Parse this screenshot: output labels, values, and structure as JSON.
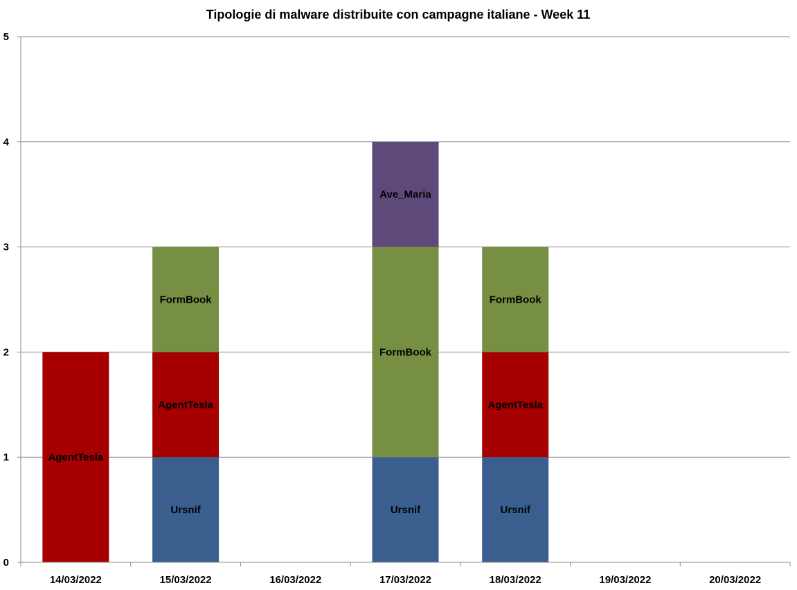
{
  "chart_data": {
    "type": "bar",
    "stacked": true,
    "title": "Tipologie di malware distribuite con campagne italiane - Week 11",
    "xlabel": "",
    "ylabel": "",
    "categories": [
      "14/03/2022",
      "15/03/2022",
      "16/03/2022",
      "17/03/2022",
      "18/03/2022",
      "19/03/2022",
      "20/03/2022"
    ],
    "yticks": [
      "0",
      "1",
      "2",
      "3",
      "4",
      "5"
    ],
    "ylim": [
      0,
      5
    ],
    "grid": true,
    "legend": "none",
    "series": [
      {
        "name": "Ursnif",
        "color": "#3a5f8f",
        "values": [
          0,
          1,
          0,
          1,
          1,
          0,
          0
        ]
      },
      {
        "name": "AgentTesla",
        "color": "#a60000",
        "values": [
          2,
          1,
          0,
          0,
          1,
          0,
          0
        ]
      },
      {
        "name": "FormBook",
        "color": "#768f43",
        "values": [
          0,
          1,
          0,
          2,
          1,
          0,
          0
        ]
      },
      {
        "name": "Ave_Maria",
        "color": "#5e4a7a",
        "values": [
          0,
          0,
          0,
          1,
          0,
          0,
          0
        ]
      }
    ]
  }
}
